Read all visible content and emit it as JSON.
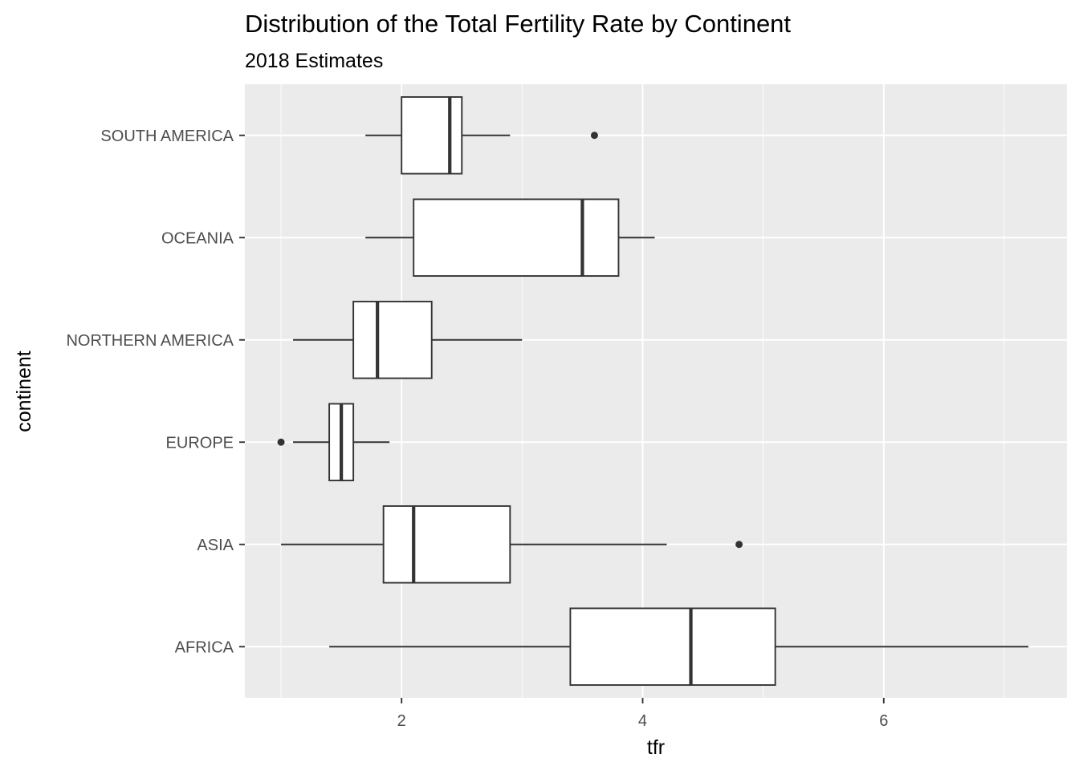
{
  "chart_data": {
    "type": "boxplot",
    "title": "Distribution of the Total Fertility Rate by Continent",
    "subtitle": "2018 Estimates",
    "xlabel": "tfr",
    "ylabel": "continent",
    "xlim": [
      0.7,
      7.52
    ],
    "x_ticks": [
      2,
      4,
      6
    ],
    "x_tick_labels": [
      "2",
      "4",
      "6"
    ],
    "categories": [
      "AFRICA",
      "ASIA",
      "EUROPE",
      "NORTHERN AMERICA",
      "OCEANIA",
      "SOUTH AMERICA"
    ],
    "boxes": [
      {
        "category": "AFRICA",
        "whisker_low": 1.4,
        "q1": 3.4,
        "median": 4.4,
        "q3": 5.1,
        "whisker_high": 7.2,
        "outliers": []
      },
      {
        "category": "ASIA",
        "whisker_low": 1.0,
        "q1": 1.85,
        "median": 2.1,
        "q3": 2.9,
        "whisker_high": 4.2,
        "outliers": [
          4.8
        ]
      },
      {
        "category": "EUROPE",
        "whisker_low": 1.1,
        "q1": 1.4,
        "median": 1.5,
        "q3": 1.6,
        "whisker_high": 1.9,
        "outliers": [
          1.0
        ]
      },
      {
        "category": "NORTHERN AMERICA",
        "whisker_low": 1.1,
        "q1": 1.6,
        "median": 1.8,
        "q3": 2.25,
        "whisker_high": 3.0,
        "outliers": []
      },
      {
        "category": "OCEANIA",
        "whisker_low": 1.7,
        "q1": 2.1,
        "median": 3.5,
        "q3": 3.8,
        "whisker_high": 4.1,
        "outliers": []
      },
      {
        "category": "SOUTH AMERICA",
        "whisker_low": 1.7,
        "q1": 2.0,
        "median": 2.4,
        "q3": 2.5,
        "whisker_high": 2.9,
        "outliers": [
          3.6
        ]
      }
    ],
    "grid": true,
    "legend": "none",
    "colors": {
      "panel_background": "#ebebeb",
      "grid_major": "#ffffff",
      "box_fill": "#ffffff",
      "box_stroke": "#333333",
      "tick_label": "#4d4d4d",
      "text": "#000000"
    }
  }
}
